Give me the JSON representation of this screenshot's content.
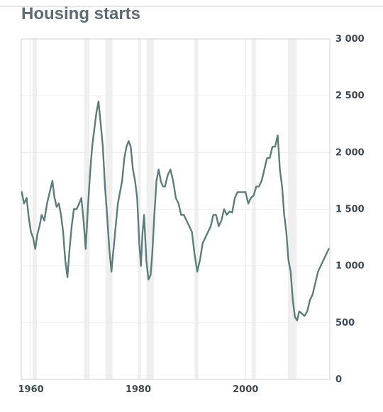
{
  "chart_data": {
    "type": "line",
    "title": "Housing starts",
    "xlabel": "",
    "ylabel": "",
    "xlim": [
      1958.2,
      2015.7
    ],
    "ylim": [
      0,
      3000
    ],
    "y_ticks": [
      0,
      500,
      1000,
      1500,
      2000,
      2500,
      3000
    ],
    "y_tick_labels": [
      "0",
      "500",
      "1 000",
      "1 500",
      "2 000",
      "2 500",
      "3 000"
    ],
    "x_ticks": [
      1960,
      1980,
      2000
    ],
    "x_tick_labels": [
      "1960",
      "1980",
      "2000"
    ],
    "grid": true,
    "y_axis_side": "right",
    "line_color": "#5b7e7c",
    "recession_color": "#efefef",
    "recession_bands": [
      [
        1960.3,
        1961.1
      ],
      [
        1969.9,
        1970.9
      ],
      [
        1973.9,
        1975.2
      ],
      [
        1980.0,
        1980.5
      ],
      [
        1981.5,
        1982.9
      ],
      [
        1990.5,
        1991.2
      ],
      [
        2001.2,
        2001.9
      ],
      [
        2007.9,
        2009.5
      ]
    ],
    "series": [
      {
        "name": "",
        "x": [
          1958.3,
          1958.7,
          1959.2,
          1959.6,
          1960.0,
          1960.4,
          1960.8,
          1961.2,
          1961.6,
          1962.0,
          1962.5,
          1963.0,
          1963.5,
          1964.0,
          1964.4,
          1964.8,
          1965.2,
          1965.6,
          1966.0,
          1966.4,
          1966.8,
          1967.2,
          1967.6,
          1968.0,
          1968.5,
          1969.0,
          1969.4,
          1969.8,
          1970.2,
          1970.6,
          1971.0,
          1971.4,
          1971.8,
          1972.2,
          1972.6,
          1973.0,
          1973.4,
          1973.8,
          1974.2,
          1974.6,
          1975.0,
          1975.4,
          1975.8,
          1976.2,
          1976.6,
          1977.0,
          1977.4,
          1977.8,
          1978.2,
          1978.6,
          1979.0,
          1979.4,
          1979.8,
          1980.2,
          1980.5,
          1980.8,
          1981.1,
          1981.5,
          1981.9,
          1982.3,
          1982.6,
          1983.0,
          1983.4,
          1983.8,
          1984.2,
          1984.6,
          1985.0,
          1985.5,
          1986.0,
          1986.5,
          1987.0,
          1987.5,
          1988.0,
          1988.5,
          1989.0,
          1989.5,
          1990.0,
          1990.5,
          1991.0,
          1991.5,
          1992.0,
          1992.5,
          1993.0,
          1993.5,
          1994.0,
          1994.5,
          1995.0,
          1995.5,
          1996.0,
          1996.5,
          1997.0,
          1997.5,
          1998.0,
          1998.5,
          1999.0,
          1999.5,
          2000.0,
          2000.5,
          2001.0,
          2001.5,
          2002.0,
          2002.5,
          2003.0,
          2003.5,
          2004.0,
          2004.5,
          2005.0,
          2005.5,
          2006.0,
          2006.4,
          2006.8,
          2007.2,
          2007.6,
          2008.0,
          2008.4,
          2008.8,
          2009.2,
          2009.6,
          2010.0,
          2010.5,
          2011.0,
          2011.5,
          2012.0,
          2012.5,
          2013.0,
          2013.5,
          2014.0,
          2014.5,
          2015.0,
          2015.5
        ],
        "values": [
          1650,
          1550,
          1600,
          1420,
          1300,
          1250,
          1150,
          1280,
          1350,
          1450,
          1400,
          1550,
          1650,
          1750,
          1600,
          1520,
          1550,
          1450,
          1300,
          1050,
          900,
          1150,
          1350,
          1500,
          1500,
          1550,
          1600,
          1400,
          1150,
          1500,
          1800,
          2050,
          2200,
          2350,
          2450,
          2250,
          2050,
          1700,
          1450,
          1150,
          950,
          1150,
          1350,
          1550,
          1650,
          1750,
          1950,
          2050,
          2100,
          2050,
          1850,
          1750,
          1600,
          1200,
          1000,
          1300,
          1450,
          1050,
          880,
          920,
          1100,
          1450,
          1750,
          1850,
          1750,
          1700,
          1700,
          1800,
          1850,
          1750,
          1600,
          1550,
          1450,
          1450,
          1400,
          1350,
          1300,
          1100,
          950,
          1050,
          1200,
          1250,
          1300,
          1350,
          1450,
          1450,
          1350,
          1400,
          1500,
          1450,
          1480,
          1470,
          1600,
          1650,
          1650,
          1650,
          1650,
          1550,
          1600,
          1620,
          1700,
          1700,
          1750,
          1850,
          1950,
          1950,
          2050,
          2050,
          2150,
          1850,
          1700,
          1450,
          1300,
          1050,
          950,
          700,
          550,
          520,
          600,
          580,
          560,
          600,
          700,
          750,
          850,
          950,
          1000,
          1050,
          1100,
          1150
        ]
      }
    ]
  }
}
